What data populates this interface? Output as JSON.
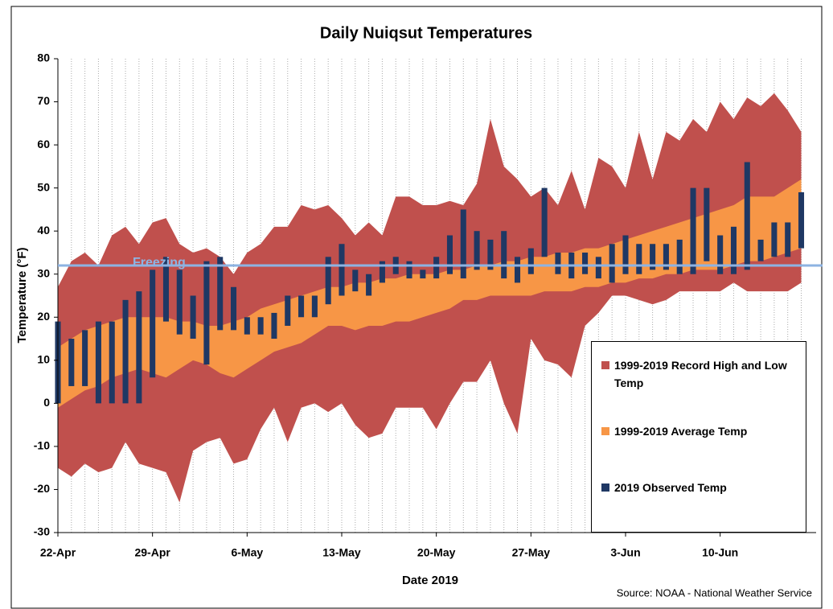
{
  "chart_data": {
    "type": "range",
    "title": "Daily Nuiqsut Temperatures",
    "x_label": "Date 2019",
    "y_label": "Temperature (°F)",
    "source": "Source: NOAA - National Weather Service",
    "categories": [
      "22-Apr",
      null,
      null,
      null,
      null,
      null,
      null,
      "29-Apr",
      null,
      null,
      null,
      null,
      null,
      null,
      "6-May",
      null,
      null,
      null,
      null,
      null,
      null,
      "13-May",
      null,
      null,
      null,
      null,
      null,
      null,
      "20-May",
      null,
      null,
      null,
      null,
      null,
      null,
      "27-May",
      null,
      null,
      null,
      null,
      null,
      null,
      "3-Jun",
      null,
      null,
      null,
      null,
      null,
      null,
      "10-Jun",
      null,
      null,
      null,
      null,
      null,
      null
    ],
    "ylim": [
      -30,
      80
    ],
    "yticks": [
      -30,
      -20,
      -10,
      0,
      10,
      20,
      30,
      40,
      50,
      60,
      70,
      80
    ],
    "grid": "x",
    "freezing": {
      "value": 32,
      "label": "Freezing",
      "color": "#8db3e2"
    },
    "series": [
      {
        "name": "1999-2019 Record High and Low Temp",
        "color": "#c0504d",
        "high": [
          27,
          33,
          35,
          32,
          39,
          41,
          37,
          42,
          43,
          37,
          35,
          36,
          34,
          30,
          35,
          37,
          41,
          41,
          46,
          45,
          46,
          43,
          39,
          42,
          39,
          48,
          48,
          46,
          46,
          47,
          46,
          51,
          66,
          55,
          52,
          48,
          50,
          46,
          54,
          45,
          57,
          55,
          50,
          63,
          52,
          63,
          61,
          66,
          63,
          70,
          66,
          71,
          69,
          72,
          68,
          63
        ],
        "low": [
          -15,
          -17,
          -14,
          -16,
          -15,
          -9,
          -14,
          -15,
          -16,
          -23,
          -11,
          -9,
          -8,
          -14,
          -13,
          -6,
          -1,
          -9,
          -1,
          0,
          -2,
          0,
          -5,
          -8,
          -7,
          -1,
          -1,
          -1,
          -6,
          0,
          5,
          5,
          10,
          0,
          -7,
          15,
          10,
          9,
          6,
          18,
          21,
          25,
          25,
          24,
          23,
          24,
          26,
          26,
          26,
          26,
          28,
          26,
          26,
          26,
          26,
          28
        ]
      },
      {
        "name": "1999-2019 Average Temp",
        "color": "#f79646",
        "high": [
          13,
          15,
          17,
          18,
          19,
          20,
          20,
          20,
          20,
          19,
          19,
          18,
          18,
          19,
          20,
          22,
          23,
          24,
          25,
          26,
          27,
          27,
          28,
          28,
          29,
          29,
          30,
          30,
          30,
          31,
          31,
          32,
          32,
          33,
          33,
          34,
          34,
          35,
          35,
          36,
          36,
          37,
          38,
          39,
          40,
          41,
          42,
          43,
          44,
          45,
          46,
          48,
          48,
          48,
          50,
          52
        ],
        "low": [
          -1,
          1,
          3,
          4,
          6,
          7,
          8,
          7,
          6,
          8,
          10,
          9,
          7,
          6,
          8,
          10,
          12,
          13,
          14,
          16,
          18,
          18,
          17,
          18,
          18,
          19,
          19,
          20,
          21,
          22,
          24,
          24,
          25,
          25,
          25,
          25,
          26,
          26,
          26,
          27,
          27,
          28,
          28,
          29,
          29,
          30,
          30,
          31,
          31,
          31,
          32,
          33,
          33,
          34,
          35,
          36
        ]
      },
      {
        "name": "2019 Observed Temp",
        "color": "#1f3864",
        "high": [
          19,
          15,
          17,
          19,
          19,
          24,
          26,
          31,
          34,
          31,
          25,
          33,
          34,
          27,
          20,
          20,
          21,
          25,
          25,
          25,
          34,
          37,
          31,
          30,
          33,
          34,
          33,
          31,
          34,
          39,
          45,
          40,
          38,
          40,
          34,
          36,
          50,
          35,
          35,
          35,
          34,
          37,
          39,
          37,
          37,
          37,
          38,
          50,
          50,
          39,
          41,
          56,
          38,
          42,
          42,
          49
        ],
        "low": [
          0,
          4,
          4,
          0,
          0,
          0,
          0,
          6,
          19,
          16,
          15,
          9,
          17,
          17,
          16,
          16,
          15,
          18,
          20,
          20,
          23,
          25,
          26,
          25,
          28,
          30,
          29,
          29,
          29,
          30,
          29,
          31,
          31,
          29,
          28,
          30,
          34,
          30,
          29,
          30,
          29,
          28,
          30,
          30,
          31,
          31,
          30,
          30,
          33,
          30,
          30,
          31,
          33,
          34,
          34,
          36
        ]
      }
    ]
  }
}
